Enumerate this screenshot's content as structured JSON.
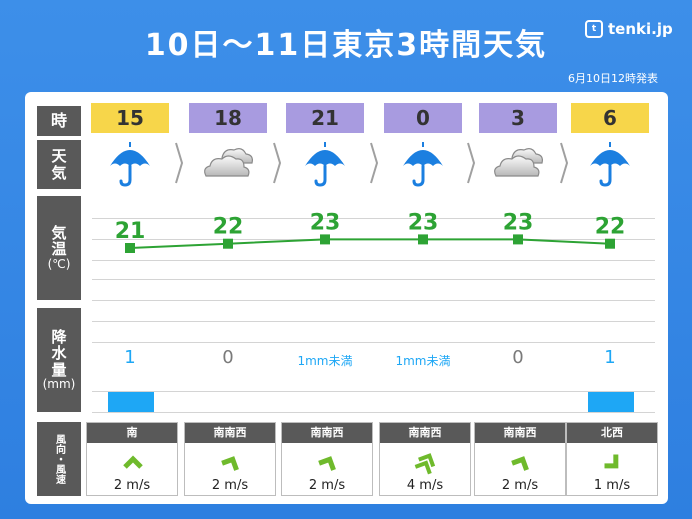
{
  "title": "10日～11日東京3時間天気",
  "logo": {
    "mark": "t",
    "name": "tenki.jp"
  },
  "issued": "6月10日12時発表",
  "row_labels": {
    "time": "時",
    "weather": [
      "天",
      "気"
    ],
    "temp": [
      "気",
      "温"
    ],
    "temp_unit": "(℃)",
    "precip": [
      "降",
      "水",
      "量"
    ],
    "precip_unit": "(mm)",
    "wind": "風向・風速"
  },
  "colors": {
    "day": "#f7d64a",
    "night": "#a89be0",
    "temp_line": "#2da334",
    "precip_blue": "#1ea7f5",
    "precip_gray": "#7a7a7a"
  },
  "forecast": [
    {
      "hour": "15",
      "period": "day",
      "weather": "rain-umbrella-icon",
      "temp": "21",
      "precip": "1",
      "precip_type": "amount",
      "wind_dir": "南",
      "wind_speed": "2 m/s",
      "wind_strength": 1
    },
    {
      "hour": "18",
      "period": "night",
      "weather": "cloud-icon",
      "temp": "22",
      "precip": "0",
      "precip_type": "zero",
      "wind_dir": "南南西",
      "wind_speed": "2 m/s",
      "wind_strength": 1
    },
    {
      "hour": "21",
      "period": "night",
      "weather": "rain-umbrella-icon",
      "temp": "23",
      "precip": "1mm未満",
      "precip_type": "trace",
      "wind_dir": "南南西",
      "wind_speed": "2 m/s",
      "wind_strength": 1
    },
    {
      "hour": "0",
      "period": "night",
      "weather": "rain-umbrella-icon",
      "temp": "23",
      "precip": "1mm未満",
      "precip_type": "trace",
      "wind_dir": "南南西",
      "wind_speed": "4 m/s",
      "wind_strength": 2
    },
    {
      "hour": "3",
      "period": "night",
      "weather": "cloud-icon",
      "temp": "23",
      "precip": "0",
      "precip_type": "zero",
      "wind_dir": "南南西",
      "wind_speed": "2 m/s",
      "wind_strength": 1
    },
    {
      "hour": "6",
      "period": "day",
      "weather": "rain-umbrella-icon",
      "temp": "22",
      "precip": "1",
      "precip_type": "amount",
      "wind_dir": "北西",
      "wind_speed": "1 m/s",
      "wind_strength": 1
    }
  ],
  "chart_data": {
    "type": "line",
    "title": "10日～11日東京3時間天気",
    "x": [
      "15",
      "18",
      "21",
      "0",
      "3",
      "6"
    ],
    "series": [
      {
        "name": "気温",
        "values": [
          21,
          22,
          23,
          23,
          23,
          22
        ]
      },
      {
        "name": "降水量",
        "values": [
          1,
          0,
          0.5,
          0.5,
          0,
          1
        ]
      }
    ],
    "ylim": [
      18,
      25
    ]
  }
}
